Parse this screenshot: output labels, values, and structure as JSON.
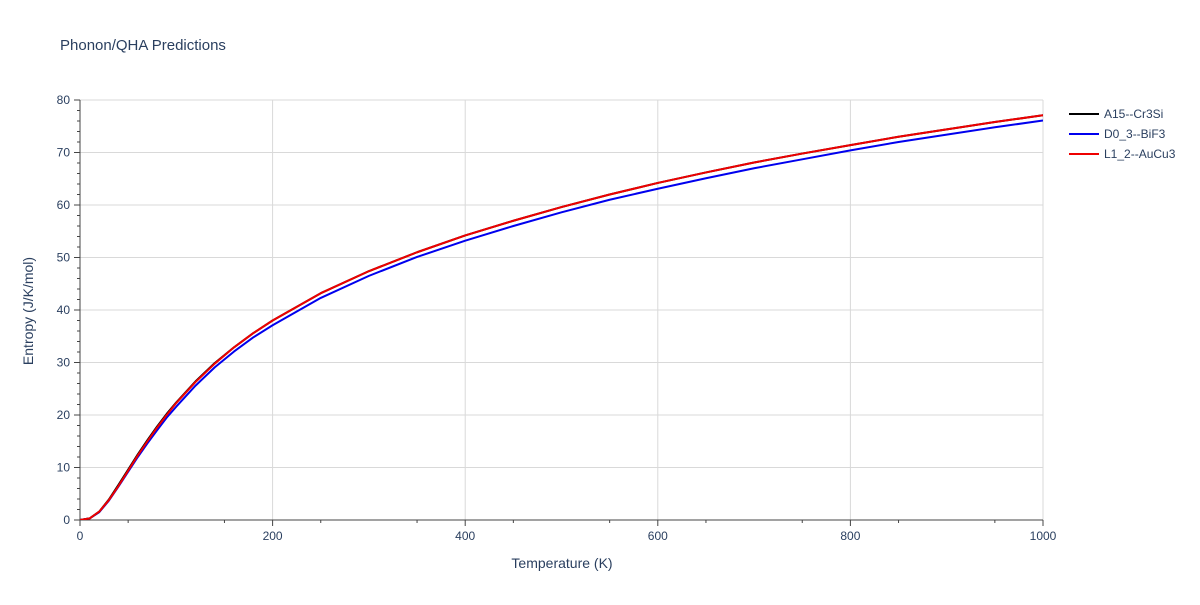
{
  "chart_data": {
    "type": "line",
    "title": "Phonon/QHA Predictions",
    "xlabel": "Temperature (K)",
    "ylabel": "Entropy (J/K/mol)",
    "xlim": [
      0,
      1000
    ],
    "ylim": [
      0,
      80
    ],
    "xticks": [
      0,
      200,
      400,
      600,
      800,
      1000
    ],
    "yticks": [
      0,
      10,
      20,
      30,
      40,
      50,
      60,
      70,
      80
    ],
    "grid": true,
    "legend_position": "top-right",
    "x": [
      0,
      10,
      20,
      30,
      40,
      50,
      60,
      70,
      80,
      90,
      100,
      120,
      140,
      160,
      180,
      200,
      250,
      300,
      350,
      400,
      450,
      500,
      550,
      600,
      650,
      700,
      750,
      800,
      850,
      900,
      950,
      1000
    ],
    "series": [
      {
        "name": "A15--Cr3Si",
        "color": "#000000",
        "values": [
          0,
          0.3,
          1.6,
          3.9,
          6.7,
          9.6,
          12.5,
          15.2,
          17.8,
          20.2,
          22.4,
          26.4,
          29.9,
          32.9,
          35.6,
          38.0,
          43.2,
          47.4,
          51.0,
          54.2,
          57.0,
          59.6,
          62.0,
          64.2,
          66.2,
          68.1,
          69.8,
          71.4,
          73.0,
          74.4,
          75.8,
          77.1
        ]
      },
      {
        "name": "D0_3--BiF3",
        "color": "#0000ee",
        "values": [
          0,
          0.3,
          1.5,
          3.7,
          6.4,
          9.2,
          12.0,
          14.6,
          17.1,
          19.5,
          21.6,
          25.6,
          29.1,
          32.1,
          34.8,
          37.1,
          42.3,
          46.5,
          50.1,
          53.2,
          56.0,
          58.6,
          61.0,
          63.1,
          65.1,
          67.0,
          68.7,
          70.4,
          72.0,
          73.4,
          74.8,
          76.1
        ]
      },
      {
        "name": "L1_2--AuCu3",
        "color": "#ee0000",
        "values": [
          0,
          0.3,
          1.6,
          3.8,
          6.5,
          9.4,
          12.3,
          15.0,
          17.6,
          20.0,
          22.3,
          26.3,
          29.8,
          32.9,
          35.6,
          38.0,
          43.2,
          47.4,
          51.0,
          54.2,
          57.0,
          59.6,
          62.0,
          64.2,
          66.2,
          68.1,
          69.8,
          71.4,
          73.0,
          74.4,
          75.8,
          77.1
        ]
      }
    ]
  }
}
